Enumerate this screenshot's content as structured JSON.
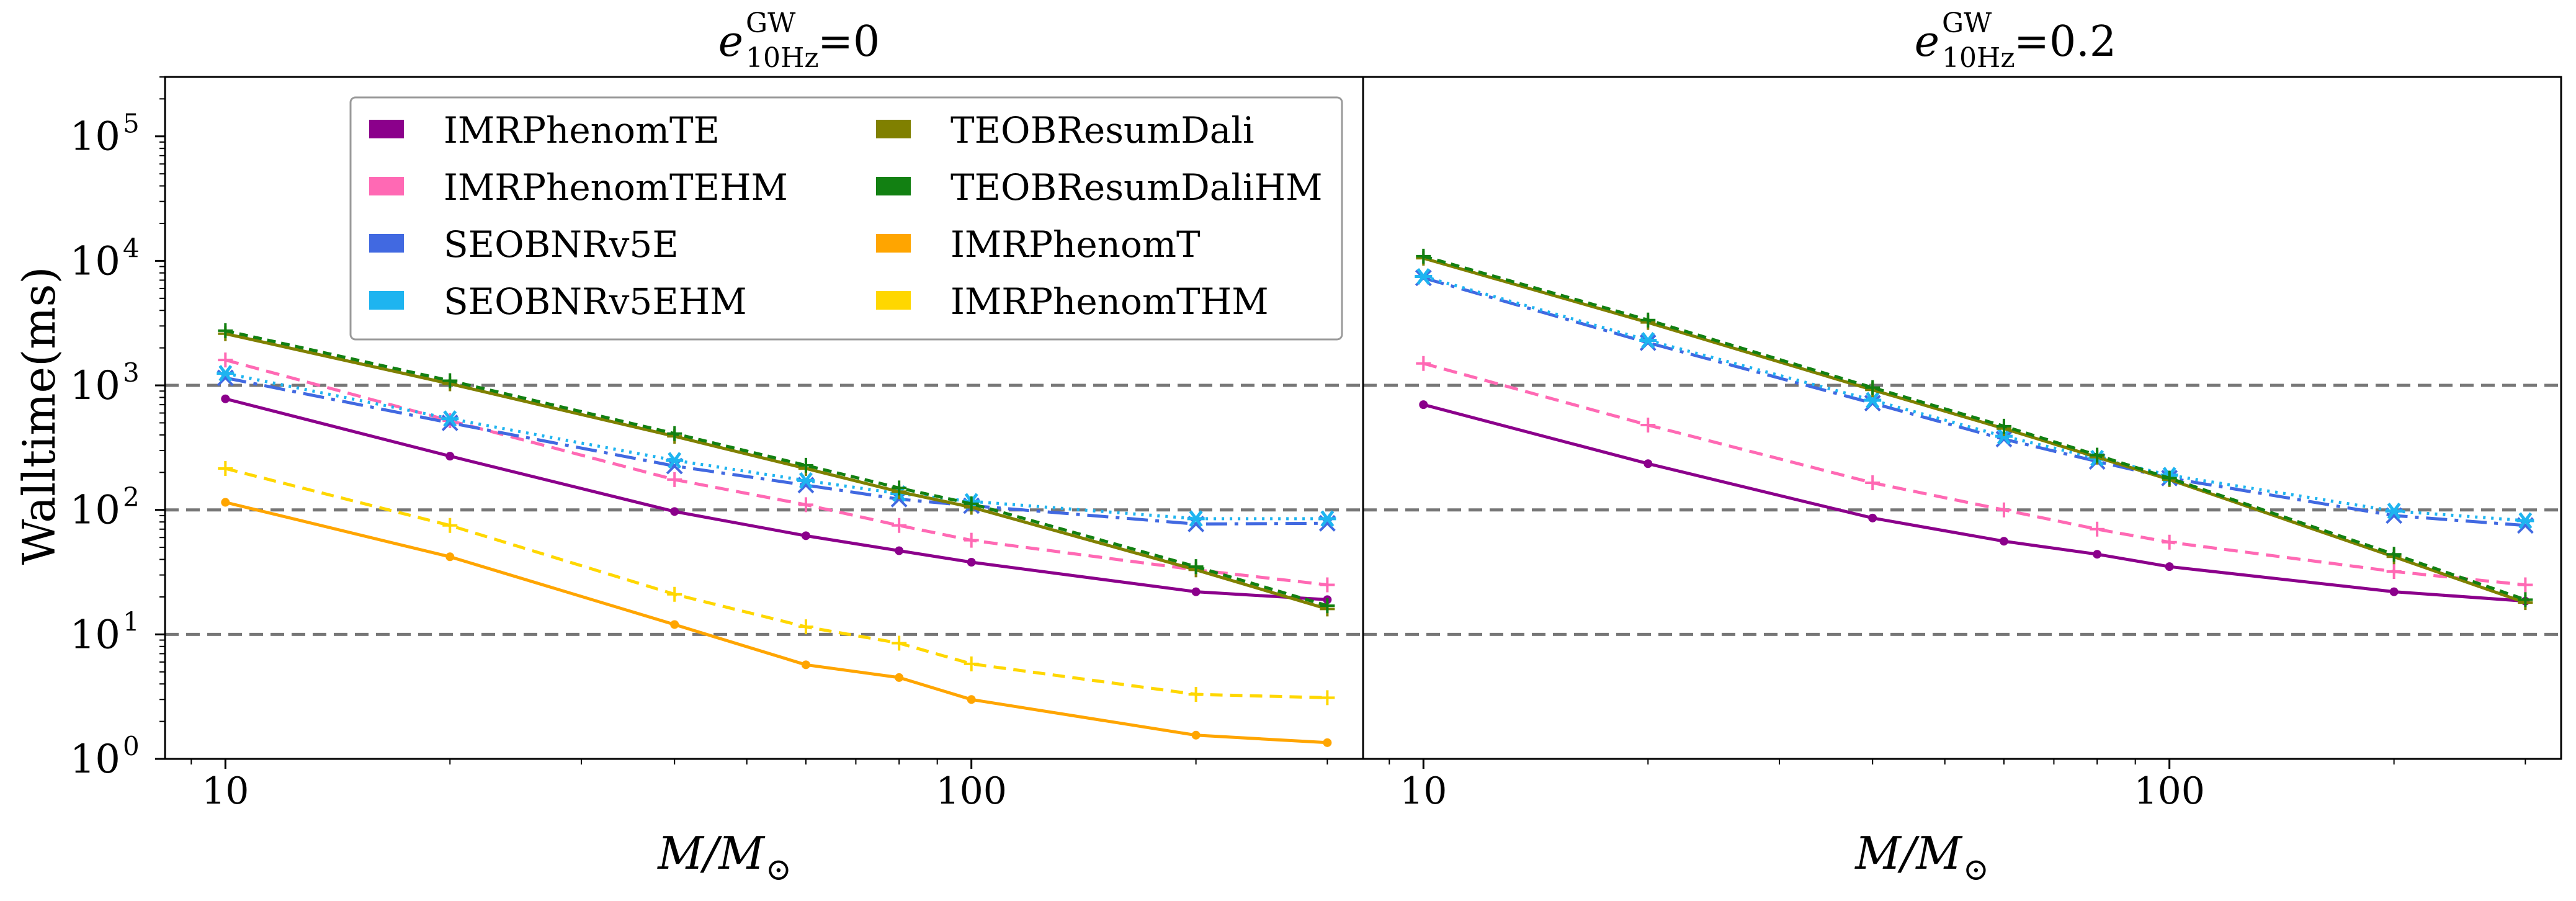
{
  "figure": {
    "ylabel": "Walltime(ms)",
    "xlabel_base": "M/M",
    "xlabel_sub": "⊙"
  },
  "chart_data": [
    {
      "type": "line",
      "title": "e^{GW}_{10Hz} =0",
      "title_parts": {
        "base": "e",
        "sup": "GW",
        "sub": "10Hz",
        "rest": " =0"
      },
      "xscale": "log",
      "yscale": "log",
      "xlim": [
        8.3,
        335
      ],
      "ylim": [
        1,
        300000
      ],
      "xticks": [
        {
          "value": 10,
          "label": "10"
        },
        {
          "value": 100,
          "label": "100"
        }
      ],
      "yticks": [
        {
          "value": 1,
          "base": "10",
          "exp": "0"
        },
        {
          "value": 10,
          "base": "10",
          "exp": "1"
        },
        {
          "value": 100,
          "base": "10",
          "exp": "2"
        },
        {
          "value": 1000,
          "base": "10",
          "exp": "3"
        },
        {
          "value": 10000,
          "base": "10",
          "exp": "4"
        },
        {
          "value": 100000,
          "base": "10",
          "exp": "5"
        }
      ],
      "hlines": [
        10,
        100,
        1000
      ],
      "legend": "upper-center",
      "x": [
        10,
        20,
        40,
        60,
        80,
        100,
        200,
        300
      ],
      "series": [
        {
          "name": "IMRPhenomTE",
          "values": [
            780,
            270,
            97,
            62,
            47,
            38,
            22,
            19
          ]
        },
        {
          "name": "IMRPhenomTEHM",
          "values": [
            1600,
            520,
            175,
            110,
            75,
            57,
            33,
            25
          ]
        },
        {
          "name": "SEOBNRv5E",
          "values": [
            1150,
            500,
            225,
            158,
            122,
            108,
            77,
            78
          ]
        },
        {
          "name": "SEOBNRv5EHM",
          "values": [
            1250,
            540,
            250,
            172,
            135,
            117,
            85,
            85
          ]
        },
        {
          "name": "TEOBResumDali",
          "values": [
            2600,
            1030,
            390,
            215,
            140,
            105,
            33,
            16
          ]
        },
        {
          "name": "TEOBResumDaliHM",
          "values": [
            2750,
            1090,
            410,
            228,
            150,
            112,
            35,
            17
          ]
        },
        {
          "name": "IMRPhenomT",
          "values": [
            115,
            42,
            12,
            5.7,
            4.5,
            3.0,
            1.55,
            1.35
          ]
        },
        {
          "name": "IMRPhenomTHM",
          "values": [
            215,
            75,
            21,
            11.5,
            8.5,
            5.8,
            3.3,
            3.1
          ]
        }
      ]
    },
    {
      "type": "line",
      "title": "e^{GW}_{10Hz} =0.2",
      "title_parts": {
        "base": "e",
        "sup": "GW",
        "sub": "10Hz",
        "rest": " =0.2"
      },
      "xscale": "log",
      "yscale": "log",
      "xlim": [
        8.3,
        335
      ],
      "ylim": [
        1,
        300000
      ],
      "xticks": [
        {
          "value": 10,
          "label": "10"
        },
        {
          "value": 100,
          "label": "100"
        }
      ],
      "hlines": [
        10,
        100,
        1000
      ],
      "x": [
        10,
        20,
        40,
        60,
        80,
        100,
        200,
        300
      ],
      "series": [
        {
          "name": "IMRPhenomTE",
          "values": [
            700,
            235,
            86,
            56,
            44,
            35,
            22,
            18.5
          ]
        },
        {
          "name": "IMRPhenomTEHM",
          "values": [
            1500,
            480,
            165,
            100,
            70,
            55,
            32,
            25
          ]
        },
        {
          "name": "SEOBNRv5E",
          "values": [
            7300,
            2200,
            720,
            370,
            245,
            180,
            90,
            75
          ]
        },
        {
          "name": "SEOBNRv5EHM",
          "values": [
            7500,
            2300,
            760,
            390,
            260,
            190,
            98,
            82
          ]
        },
        {
          "name": "TEOBResumDali",
          "values": [
            10500,
            3200,
            920,
            450,
            265,
            175,
            42,
            18
          ]
        },
        {
          "name": "TEOBResumDaliHM",
          "values": [
            10900,
            3350,
            960,
            470,
            275,
            180,
            44,
            19
          ]
        }
      ]
    }
  ],
  "styles": {
    "IMRPhenomTE": {
      "color": "#8B008B",
      "dash": "",
      "marker": "dot"
    },
    "IMRPhenomTEHM": {
      "color": "#FF69B4",
      "dash": "22,12",
      "marker": "plus"
    },
    "SEOBNRv5E": {
      "color": "#4169E1",
      "dash": "34,12,6,12",
      "marker": "x"
    },
    "SEOBNRv5EHM": {
      "color": "#1EB4F0",
      "dash": "4,9",
      "marker": "star"
    },
    "TEOBResumDali": {
      "color": "#808000",
      "dash": "",
      "marker": "plus"
    },
    "TEOBResumDaliHM": {
      "color": "#128012",
      "dash": "14,9",
      "marker": "plus"
    },
    "IMRPhenomT": {
      "color": "#FFA500",
      "dash": "",
      "marker": "dot"
    },
    "IMRPhenomTHM": {
      "color": "#FFD700",
      "dash": "20,12",
      "marker": "plus"
    }
  },
  "legend_items": [
    [
      "IMRPhenomTE",
      "TEOBResumDali"
    ],
    [
      "IMRPhenomTEHM",
      "TEOBResumDaliHM"
    ],
    [
      "SEOBNRv5E",
      "IMRPhenomT"
    ],
    [
      "SEOBNRv5EHM",
      "IMRPhenomTHM"
    ]
  ],
  "colors": {
    "gridline": "#777777",
    "axis": "#000000",
    "legend_border": "#9a9a9a"
  }
}
